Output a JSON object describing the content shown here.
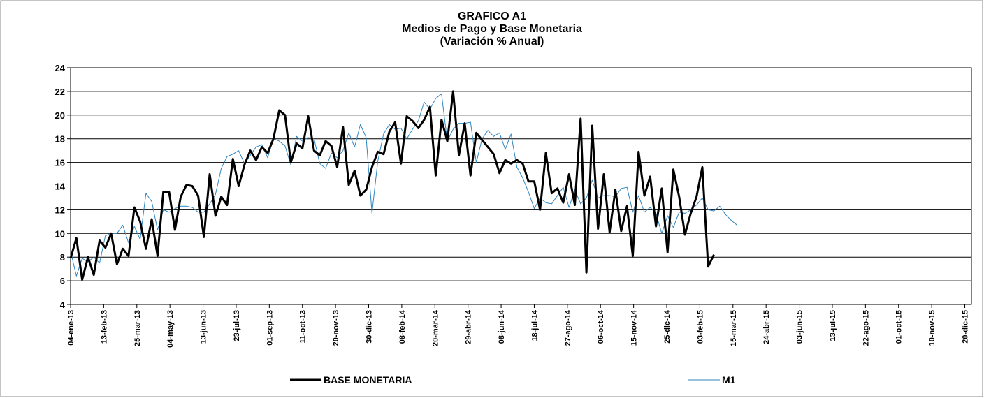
{
  "chart_data": {
    "type": "line",
    "title": "GRAFICO A1",
    "subtitle": [
      "Medios de Pago y Base Monetaria",
      "(Variación % Anual)"
    ],
    "x": [
      "2013-01-04",
      "2013-01-11",
      "2013-01-18",
      "2013-01-25",
      "2013-02-01",
      "2013-02-08",
      "2013-02-15",
      "2013-02-22",
      "2013-03-01",
      "2013-03-08",
      "2013-03-15",
      "2013-03-22",
      "2013-03-29",
      "2013-04-05",
      "2013-04-12",
      "2013-04-19",
      "2013-04-26",
      "2013-05-03",
      "2013-05-10",
      "2013-05-17",
      "2013-05-24",
      "2013-05-31",
      "2013-06-07",
      "2013-06-14",
      "2013-06-21",
      "2013-06-28",
      "2013-07-05",
      "2013-07-12",
      "2013-07-19",
      "2013-07-26",
      "2013-08-02",
      "2013-08-09",
      "2013-08-16",
      "2013-08-23",
      "2013-08-30",
      "2013-09-06",
      "2013-09-13",
      "2013-09-20",
      "2013-09-27",
      "2013-10-04",
      "2013-10-11",
      "2013-10-18",
      "2013-10-25",
      "2013-11-01",
      "2013-11-08",
      "2013-11-15",
      "2013-11-22",
      "2013-11-29",
      "2013-12-06",
      "2013-12-13",
      "2013-12-20",
      "2013-12-27",
      "2014-01-03",
      "2014-01-10",
      "2014-01-17",
      "2014-01-24",
      "2014-01-31",
      "2014-02-07",
      "2014-02-14",
      "2014-02-21",
      "2014-02-28",
      "2014-03-07",
      "2014-03-14",
      "2014-03-21",
      "2014-03-28",
      "2014-04-04",
      "2014-04-11",
      "2014-04-18",
      "2014-04-25",
      "2014-05-02",
      "2014-05-09",
      "2014-05-16",
      "2014-05-23",
      "2014-05-30",
      "2014-06-06",
      "2014-06-13",
      "2014-06-20",
      "2014-06-27",
      "2014-07-04",
      "2014-07-11",
      "2014-07-18",
      "2014-07-25",
      "2014-08-01",
      "2014-08-08",
      "2014-08-15",
      "2014-08-22",
      "2014-08-29",
      "2014-09-05",
      "2014-09-12",
      "2014-09-19",
      "2014-09-26",
      "2014-10-03",
      "2014-10-10",
      "2014-10-17",
      "2014-10-24",
      "2014-10-31",
      "2014-11-07",
      "2014-11-14",
      "2014-11-21",
      "2014-11-28",
      "2014-12-05",
      "2014-12-12",
      "2014-12-19",
      "2014-12-26",
      "2015-01-02",
      "2015-01-09",
      "2015-01-16",
      "2015-01-23",
      "2015-01-30",
      "2015-02-06",
      "2015-02-13",
      "2015-02-20",
      "2015-02-27",
      "2015-03-06",
      "2015-03-13",
      "2015-03-20"
    ],
    "series": [
      {
        "name": "BASE MONETARIA",
        "color": "#000000",
        "values": [
          7.9,
          9.6,
          6.1,
          8.0,
          6.5,
          9.4,
          8.8,
          10.0,
          7.4,
          8.7,
          8.1,
          12.2,
          11.0,
          8.7,
          11.2,
          8.1,
          13.5,
          13.5,
          10.3,
          13.1,
          14.1,
          14.0,
          13.2,
          9.7,
          15.0,
          11.5,
          13.1,
          12.4,
          16.3,
          14.0,
          15.8,
          17.0,
          16.2,
          17.3,
          16.8,
          18.0,
          20.4,
          20.0,
          16.0,
          17.6,
          17.2,
          19.9,
          17.0,
          16.6,
          17.8,
          17.4,
          15.6,
          19.0,
          14.1,
          15.3,
          13.2,
          13.7,
          15.6,
          16.9,
          16.7,
          18.6,
          19.4,
          15.9,
          19.9,
          19.5,
          18.9,
          19.6,
          20.7,
          14.9,
          19.6,
          17.8,
          22.0,
          16.6,
          19.3,
          14.9,
          18.5,
          17.9,
          17.3,
          16.7,
          15.1,
          16.2,
          15.9,
          16.2,
          15.9,
          14.4,
          14.4,
          12.0,
          16.8,
          13.4,
          13.8,
          12.6,
          15.0,
          12.4,
          19.7,
          6.7,
          19.1,
          10.4,
          15.0,
          10.1,
          13.7,
          10.2,
          12.3,
          8.1,
          16.9,
          13.2,
          14.8,
          10.6,
          13.8,
          8.4,
          15.4,
          13.1,
          9.9,
          11.7,
          13.1,
          15.6,
          7.2,
          8.2,
          null,
          null,
          null,
          null
        ]
      },
      {
        "name": "M1",
        "color": "#2e86c1",
        "values": [
          8.5,
          6.4,
          7.9,
          7.6,
          8.0,
          7.5,
          9.8,
          10.0,
          10.0,
          10.7,
          9.2,
          10.6,
          9.5,
          13.4,
          12.7,
          10.3,
          12.0,
          11.8,
          12.1,
          12.3,
          12.3,
          12.2,
          11.8,
          11.8,
          12.5,
          13.3,
          15.5,
          16.5,
          16.7,
          17.0,
          15.9,
          16.6,
          17.3,
          17.5,
          16.4,
          18.0,
          17.8,
          17.4,
          15.8,
          18.2,
          17.8,
          18.1,
          18.0,
          15.9,
          15.5,
          16.8,
          16.4,
          17.0,
          18.5,
          17.3,
          19.2,
          18.1,
          11.7,
          16.1,
          18.4,
          19.2,
          18.8,
          18.9,
          18.0,
          18.8,
          19.5,
          21.1,
          20.5,
          21.4,
          21.8,
          17.8,
          18.8,
          19.3,
          19.3,
          19.4,
          16.0,
          18.0,
          18.7,
          18.2,
          18.5,
          17.1,
          18.4,
          15.6,
          14.7,
          13.5,
          12.1,
          13.0,
          12.6,
          12.5,
          13.2,
          13.9,
          12.2,
          13.7,
          12.5,
          13.0,
          14.5,
          13.0,
          13.2,
          13.2,
          13.1,
          13.8,
          13.9,
          11.8,
          13.2,
          11.8,
          12.2,
          11.7,
          10.0,
          11.5,
          10.5,
          11.8,
          11.7,
          12.0,
          12.4,
          13.0,
          12.0,
          11.9,
          12.3,
          11.6,
          11.1,
          10.7
        ]
      }
    ],
    "xlim": [
      "2013-01-04",
      "2015-12-28"
    ],
    "xticks": [
      {
        "value": "2013-01-04",
        "label": "04-ene-13"
      },
      {
        "value": "2013-02-13",
        "label": "13-feb-13"
      },
      {
        "value": "2013-03-25",
        "label": "25-mar-13"
      },
      {
        "value": "2013-05-04",
        "label": "04-may-13"
      },
      {
        "value": "2013-06-13",
        "label": "13-jun-13"
      },
      {
        "value": "2013-07-23",
        "label": "23-jul-13"
      },
      {
        "value": "2013-09-01",
        "label": "01-sep-13"
      },
      {
        "value": "2013-10-11",
        "label": "11-oct-13"
      },
      {
        "value": "2013-11-20",
        "label": "20-nov-13"
      },
      {
        "value": "2013-12-30",
        "label": "30-dic-13"
      },
      {
        "value": "2014-02-08",
        "label": "08-feb-14"
      },
      {
        "value": "2014-03-20",
        "label": "20-mar-14"
      },
      {
        "value": "2014-04-29",
        "label": "29-abr-14"
      },
      {
        "value": "2014-06-08",
        "label": "08-jun-14"
      },
      {
        "value": "2014-07-18",
        "label": "18-jul-14"
      },
      {
        "value": "2014-08-27",
        "label": "27-ago-14"
      },
      {
        "value": "2014-10-06",
        "label": "06-oct-14"
      },
      {
        "value": "2014-11-15",
        "label": "15-nov-14"
      },
      {
        "value": "2014-12-25",
        "label": "25-dic-14"
      },
      {
        "value": "2015-02-03",
        "label": "03-feb-15"
      },
      {
        "value": "2015-03-15",
        "label": "15-mar-15"
      },
      {
        "value": "2015-04-24",
        "label": "24-abr-15"
      },
      {
        "value": "2015-06-03",
        "label": "03-jun-15"
      },
      {
        "value": "2015-07-13",
        "label": "13-jul-15"
      },
      {
        "value": "2015-08-22",
        "label": "22-ago-15"
      },
      {
        "value": "2015-10-01",
        "label": "01-oct-15"
      },
      {
        "value": "2015-11-10",
        "label": "10-nov-15"
      },
      {
        "value": "2015-12-20",
        "label": "20-dic-15"
      }
    ],
    "ylim": [
      4,
      24
    ],
    "yticks": [
      4,
      6,
      8,
      10,
      12,
      14,
      16,
      18,
      20,
      22,
      24
    ],
    "grid": true,
    "legend": "bottom"
  }
}
